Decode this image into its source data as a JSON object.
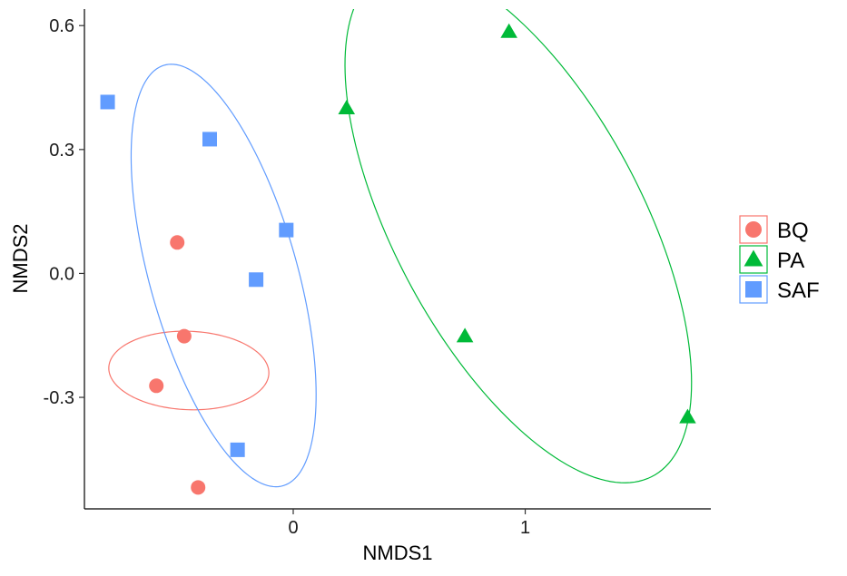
{
  "chart_data": {
    "type": "scatter",
    "xlabel": "NMDS1",
    "ylabel": "NMDS2",
    "xlim": [
      -0.9,
      1.8
    ],
    "ylim": [
      -0.57,
      0.64
    ],
    "xticks": [
      0,
      1
    ],
    "yticks": [
      -0.3,
      0.0,
      0.3,
      0.6
    ],
    "ytick_labels": [
      "-0.3",
      "0.0",
      "0.3",
      "0.6"
    ],
    "xtick_labels": [
      "0",
      "1"
    ],
    "grid": false,
    "legend_position": "right",
    "series": [
      {
        "name": "BQ",
        "marker": "circle",
        "color": "#F8766D",
        "points": [
          {
            "x": -0.5,
            "y": 0.075
          },
          {
            "x": -0.47,
            "y": -0.152
          },
          {
            "x": -0.59,
            "y": -0.272
          },
          {
            "x": -0.41,
            "y": -0.518
          }
        ],
        "ellipse": {
          "cx": -0.45,
          "cy": -0.235,
          "rx": 0.095,
          "ry": 0.345,
          "angle_deg": 89
        }
      },
      {
        "name": "PA",
        "marker": "triangle",
        "color": "#00BA38",
        "points": [
          {
            "x": 0.93,
            "y": 0.585
          },
          {
            "x": 0.23,
            "y": 0.4
          },
          {
            "x": 0.74,
            "y": -0.152
          },
          {
            "x": 1.7,
            "y": -0.348
          }
        ],
        "ellipse": {
          "cx": 0.97,
          "cy": 0.12,
          "rx": 0.88,
          "ry": 0.42,
          "angle_deg": -37
        }
      },
      {
        "name": "SAF",
        "marker": "square",
        "color": "#619CFF",
        "points": [
          {
            "x": -0.8,
            "y": 0.415
          },
          {
            "x": -0.36,
            "y": 0.325
          },
          {
            "x": -0.03,
            "y": 0.105
          },
          {
            "x": -0.16,
            "y": -0.015
          },
          {
            "x": -0.24,
            "y": -0.427
          }
        ],
        "ellipse": {
          "cx": -0.3,
          "cy": -0.005,
          "rx": 0.58,
          "ry": 0.29,
          "angle_deg": -57
        }
      }
    ]
  }
}
